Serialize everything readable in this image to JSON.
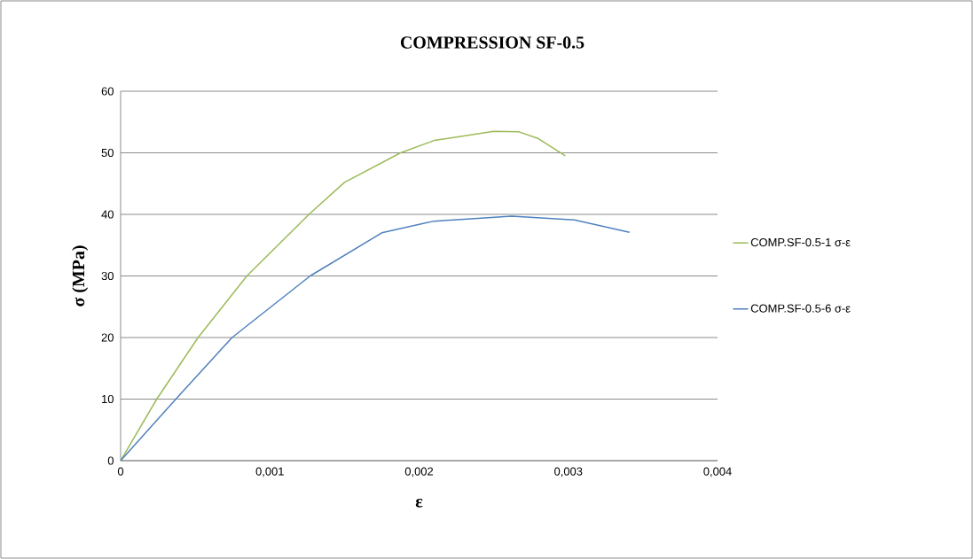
{
  "chart_data": {
    "type": "line",
    "title": "COMPRESSION SF-0.5",
    "xlabel": "ε",
    "ylabel": "σ (MPa)",
    "xlim": [
      0,
      0.004
    ],
    "ylim": [
      0,
      60
    ],
    "xticks": [
      0,
      {
        "value": 0.001,
        "label": "0,001"
      },
      {
        "value": 0.002,
        "label": "0,002"
      },
      {
        "value": 0.003,
        "label": "0,003"
      },
      {
        "value": 0.004,
        "label": "0,004"
      }
    ],
    "yticks": [
      0,
      10,
      20,
      30,
      40,
      50,
      60
    ],
    "grid": "y",
    "legend": "right",
    "marker": "none",
    "line_style": "solid",
    "series": [
      {
        "name": "COMP.SF-0.5-1 σ-ε",
        "color": "#9bbb59",
        "x": [
          0,
          0.000242,
          0.000519,
          0.000846,
          0.001262,
          0.0015,
          0.001876,
          0.0021,
          0.0025,
          0.00267,
          0.0028,
          0.00298
        ],
        "values": [
          0,
          10,
          20,
          30,
          40,
          45.2,
          50,
          52,
          53.5,
          53.4,
          52.3,
          49.5
        ]
      },
      {
        "name": "COMP.SF-0.5-6 σ-ε",
        "color": "#4f81bd",
        "x": [
          0,
          0.00037,
          0.000747,
          0.00127,
          0.00175,
          0.00204,
          0.0021,
          0.00262,
          0.00304,
          0.00341
        ],
        "values": [
          0,
          10,
          20,
          30,
          37,
          38.6,
          38.9,
          39.7,
          39.1,
          37.1
        ]
      }
    ]
  }
}
